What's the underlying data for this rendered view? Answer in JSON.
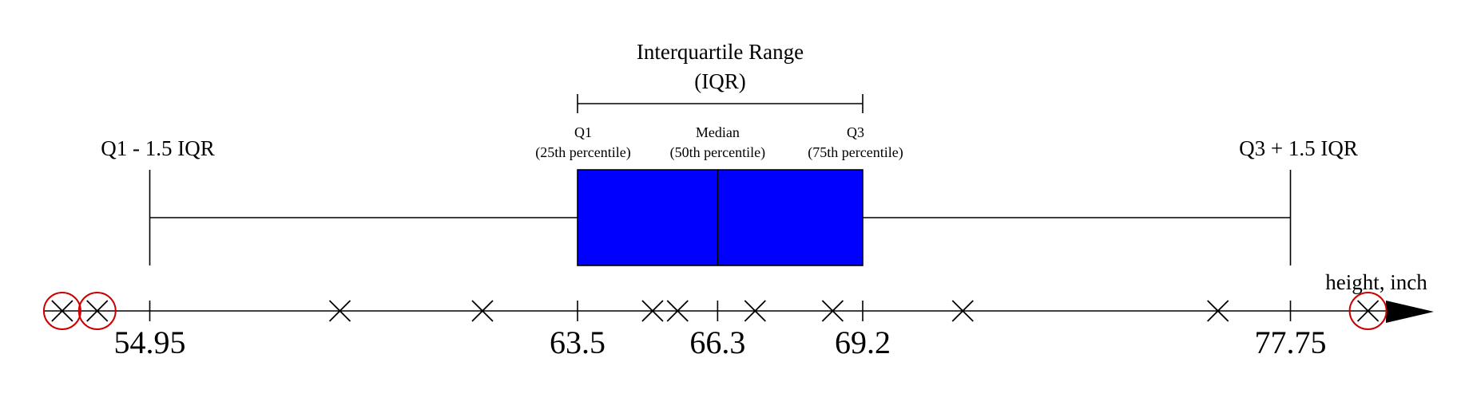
{
  "chart_data": {
    "type": "boxplot",
    "axis_label": "height, inch",
    "iqr_label": {
      "line1": "Interquartile Range",
      "line2": "(IQR)"
    },
    "whisker_labels": {
      "lower": "Q1 - 1.5 IQR",
      "upper": "Q3 + 1.5 IQR"
    },
    "quartile_labels": {
      "q1": {
        "line1": "Q1",
        "line2": "(25th percentile)"
      },
      "median": {
        "line1": "Median",
        "line2": "(50th percentile)"
      },
      "q3": {
        "line1": "Q3",
        "line2": "(75th percentile)"
      }
    },
    "summary": {
      "lower_fence": 54.95,
      "q1": 63.5,
      "median": 66.3,
      "q3": 69.2,
      "upper_fence": 77.75
    },
    "tick_labels": [
      "54.95",
      "63.5",
      "66.3",
      "69.2",
      "77.75"
    ],
    "tick_values": [
      54.95,
      63.5,
      66.3,
      69.2,
      77.75
    ],
    "points": [
      53.2,
      53.9,
      58.75,
      61.6,
      65.0,
      65.5,
      67.05,
      68.6,
      71.2,
      76.3
    ],
    "outliers": [
      53.2,
      53.9,
      79.3
    ],
    "box_color": "#0000ff",
    "outlier_circle_color": "#cc0000"
  }
}
